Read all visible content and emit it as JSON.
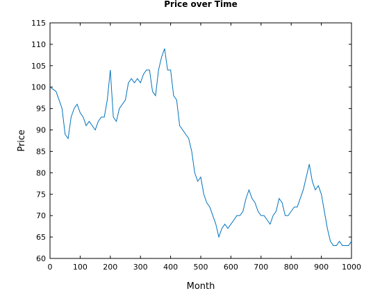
{
  "chart_data": {
    "type": "line",
    "title": "Price over Time",
    "xlabel": "Month",
    "ylabel": "Price",
    "x": [
      0,
      10,
      20,
      30,
      40,
      50,
      60,
      70,
      80,
      90,
      100,
      110,
      120,
      130,
      140,
      150,
      160,
      170,
      180,
      190,
      200,
      210,
      220,
      230,
      240,
      250,
      260,
      270,
      280,
      290,
      300,
      310,
      320,
      330,
      340,
      350,
      360,
      370,
      380,
      390,
      400,
      410,
      420,
      430,
      440,
      450,
      460,
      470,
      480,
      490,
      500,
      510,
      520,
      530,
      540,
      550,
      560,
      570,
      580,
      590,
      600,
      610,
      620,
      630,
      640,
      650,
      660,
      670,
      680,
      690,
      700,
      710,
      720,
      730,
      740,
      750,
      760,
      770,
      780,
      790,
      800,
      810,
      820,
      830,
      840,
      850,
      860,
      870,
      880,
      890,
      900,
      910,
      920,
      930,
      940,
      950,
      960,
      970,
      980,
      990,
      1000
    ],
    "series": [
      {
        "name": "Price",
        "color": "#0072bd",
        "values": [
          100,
          99.5,
          99,
          97,
          95,
          89,
          88,
          93,
          95,
          96,
          94,
          93,
          91,
          92,
          91,
          90,
          92,
          93,
          93,
          97,
          104,
          93,
          92,
          95,
          96,
          97,
          101,
          102,
          101,
          102,
          101,
          103,
          104,
          104,
          99,
          98,
          104,
          107,
          109,
          104,
          104,
          98,
          97,
          91,
          90,
          89,
          88,
          85,
          80,
          78,
          79,
          75,
          73,
          72,
          70,
          68,
          65,
          67,
          68,
          67,
          68,
          69,
          70,
          70,
          71,
          74,
          76,
          74,
          73,
          71,
          70,
          70,
          69,
          68,
          70,
          71,
          74,
          73,
          70,
          70,
          71,
          72,
          72,
          74,
          76,
          79,
          82,
          78,
          76,
          77,
          75,
          71,
          67,
          64,
          63,
          63,
          64,
          63,
          63,
          63,
          64
        ]
      }
    ],
    "xlim": [
      0,
      1000
    ],
    "ylim": [
      60,
      115
    ],
    "xticks": [
      0,
      100,
      200,
      300,
      400,
      500,
      600,
      700,
      800,
      900,
      1000
    ],
    "yticks": [
      60,
      65,
      70,
      75,
      80,
      85,
      90,
      95,
      100,
      105,
      110,
      115
    ]
  }
}
